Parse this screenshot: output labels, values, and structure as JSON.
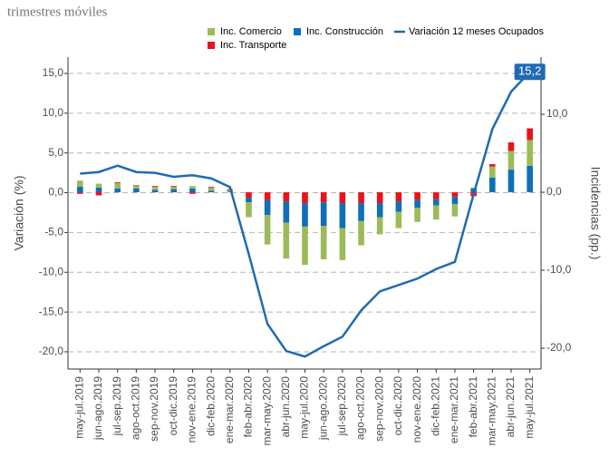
{
  "chart_data": {
    "type": "bar",
    "title": "trimestres móviles",
    "y_label": "Variación (%)",
    "y2_label": "Incidencias (pp.)",
    "categories": [
      "may-jul.2019",
      "jun-ago.2019",
      "jul-sep.2019",
      "ago-oct.2019",
      "sep-nov.2019",
      "oct-dic.2019",
      "nov-ene.2019",
      "dic-feb.2020",
      "ene-mar.2020",
      "feb-abr.2020",
      "mar-may.2020",
      "abr-jun.2020",
      "may-jul.2020",
      "jun-ago.2020",
      "jul-sep.2020",
      "ago-oct.2020",
      "sep-nov.2020",
      "oct-dic.2020",
      "nov-ene.2020",
      "dic-feb.2021",
      "ene-mar.2021",
      "feb-abr.2021",
      "mar-may.2021",
      "abr-jun.2021",
      "may-jul.2021"
    ],
    "series": [
      {
        "name": "Inc. Comercio",
        "color": "#9bbb59",
        "axis": "y2",
        "values": [
          0.8,
          0.5,
          0.7,
          0.3,
          0.4,
          0.3,
          0.3,
          0.4,
          0.2,
          -1.9,
          -3.8,
          -4.6,
          -4.9,
          -4.3,
          -4.1,
          -3.1,
          -2.2,
          -2.1,
          -1.8,
          -1.8,
          -1.6,
          0.1,
          1.4,
          2.4,
          3.3
        ]
      },
      {
        "name": "Inc. Construcción",
        "color": "#0f6fb8",
        "axis": "y2",
        "values": [
          0.7,
          0.6,
          0.5,
          0.5,
          0.3,
          0.4,
          0.5,
          0.2,
          0.1,
          -0.6,
          -1.9,
          -2.7,
          -3.0,
          -3.0,
          -3.2,
          -2.3,
          -1.8,
          -1.3,
          -1.0,
          -0.8,
          -0.9,
          0.5,
          1.9,
          2.9,
          3.4
        ]
      },
      {
        "name": "Inc. Transporte",
        "color": "#e8141b",
        "axis": "y2",
        "values": [
          -0.2,
          -0.4,
          0.1,
          0.1,
          0.1,
          0.1,
          -0.2,
          0.1,
          0.1,
          -0.7,
          -1.0,
          -1.2,
          -1.4,
          -1.3,
          -1.4,
          -1.4,
          -1.4,
          -1.2,
          -1.0,
          -0.9,
          -0.6,
          -0.5,
          0.3,
          1.1,
          1.5
        ]
      },
      {
        "name": "Variación 12 meses Ocupados",
        "color": "#1f6bb0",
        "type": "line",
        "values": [
          2.4,
          2.6,
          3.4,
          2.6,
          2.5,
          2.0,
          2.2,
          1.8,
          0.7,
          -7.7,
          -16.5,
          -19.9,
          -20.6,
          -19.3,
          -18.1,
          -14.8,
          -12.4,
          -11.6,
          -10.8,
          -9.6,
          -8.7,
          -0.2,
          8.0,
          12.7,
          15.2
        ],
        "value_labels": [
          null,
          null,
          null,
          null,
          null,
          null,
          null,
          null,
          null,
          null,
          null,
          null,
          null,
          null,
          null,
          null,
          null,
          null,
          null,
          null,
          null,
          null,
          null,
          null,
          "15,2"
        ]
      }
    ],
    "ylim": [
      -22.17,
      17.05
    ],
    "yticks": [
      {
        "value": 15,
        "label": "15,0"
      },
      {
        "value": 10,
        "label": "10,0"
      },
      {
        "value": 5,
        "label": "5,0"
      },
      {
        "value": 0,
        "label": "0,0"
      },
      {
        "value": -5,
        "label": "-5,0"
      },
      {
        "value": -10,
        "label": "-10,0"
      },
      {
        "value": -15,
        "label": "-15,0"
      },
      {
        "value": -20,
        "label": "-20,0"
      }
    ],
    "y2lim": [
      -22.67,
      17.33
    ],
    "y2ticks": [
      {
        "value": 10,
        "label": "10,0"
      },
      {
        "value": 0,
        "label": "0,0"
      },
      {
        "value": -10,
        "label": "-10,0"
      },
      {
        "value": -20,
        "label": "-20,0"
      }
    ],
    "grid": true
  }
}
